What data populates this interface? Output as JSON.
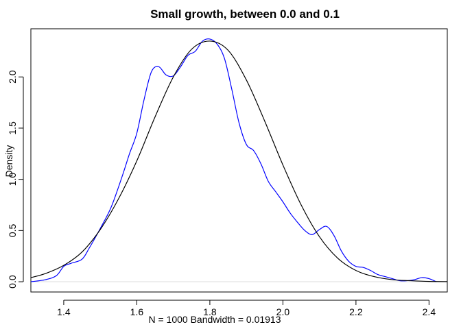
{
  "chart_data": {
    "type": "line",
    "title": "Small growth, between 0.0 and 0.1",
    "xlabel": "N = 1000   Bandwidth = 0.01913",
    "ylabel": "Density",
    "xlim": [
      1.31,
      2.45
    ],
    "ylim": [
      -0.1,
      2.47
    ],
    "x_ticks": [
      {
        "value": 1.4,
        "label": "1.4"
      },
      {
        "value": 1.6,
        "label": "1.6"
      },
      {
        "value": 1.8,
        "label": "1.8"
      },
      {
        "value": 2.0,
        "label": "2.0"
      },
      {
        "value": 2.2,
        "label": "2.2"
      },
      {
        "value": 2.4,
        "label": "2.4"
      }
    ],
    "y_ticks": [
      {
        "value": 0.0,
        "label": "0.0"
      },
      {
        "value": 0.5,
        "label": "0.5"
      },
      {
        "value": 1.0,
        "label": "1.0"
      },
      {
        "value": 1.5,
        "label": "1.5"
      },
      {
        "value": 2.0,
        "label": "2.0"
      }
    ],
    "grid": false,
    "series": [
      {
        "color": "#0000ff",
        "x": [
          1.31,
          1.35,
          1.38,
          1.4,
          1.42,
          1.45,
          1.47,
          1.5,
          1.53,
          1.56,
          1.58,
          1.6,
          1.62,
          1.64,
          1.66,
          1.68,
          1.7,
          1.72,
          1.74,
          1.76,
          1.78,
          1.8,
          1.82,
          1.84,
          1.86,
          1.88,
          1.9,
          1.92,
          1.94,
          1.96,
          1.98,
          2.0,
          2.02,
          2.04,
          2.06,
          2.08,
          2.1,
          2.12,
          2.14,
          2.16,
          2.18,
          2.2,
          2.22,
          2.24,
          2.26,
          2.28,
          2.3,
          2.32,
          2.34,
          2.36,
          2.38,
          2.4,
          2.42
        ],
        "y": [
          0.0,
          0.02,
          0.06,
          0.15,
          0.18,
          0.22,
          0.33,
          0.52,
          0.73,
          1.03,
          1.25,
          1.45,
          1.78,
          2.05,
          2.1,
          2.02,
          2.01,
          2.1,
          2.21,
          2.25,
          2.35,
          2.37,
          2.32,
          2.18,
          1.88,
          1.55,
          1.34,
          1.28,
          1.15,
          0.98,
          0.88,
          0.78,
          0.67,
          0.58,
          0.5,
          0.46,
          0.51,
          0.54,
          0.45,
          0.3,
          0.2,
          0.15,
          0.14,
          0.11,
          0.07,
          0.05,
          0.03,
          0.01,
          0.01,
          0.02,
          0.04,
          0.03,
          0.0
        ]
      },
      {
        "color": "#000000",
        "x": [
          1.31,
          1.35,
          1.4,
          1.45,
          1.5,
          1.55,
          1.6,
          1.65,
          1.7,
          1.75,
          1.8,
          1.85,
          1.9,
          1.95,
          2.0,
          2.05,
          2.1,
          2.15,
          2.2,
          2.25,
          2.3,
          2.35,
          2.4,
          2.45
        ],
        "y": [
          0.04,
          0.08,
          0.16,
          0.29,
          0.51,
          0.81,
          1.18,
          1.61,
          2.0,
          2.27,
          2.35,
          2.26,
          1.97,
          1.57,
          1.14,
          0.75,
          0.44,
          0.23,
          0.11,
          0.05,
          0.02,
          0.01,
          0.003,
          0.001
        ]
      }
    ]
  }
}
